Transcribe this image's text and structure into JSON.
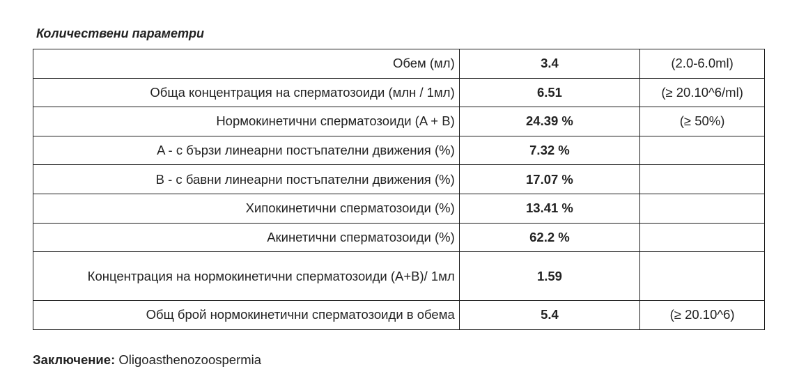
{
  "section_title": "Количествени параметри",
  "rows": [
    {
      "label": "Обем (мл)",
      "value": "3.4",
      "ref": "(2.0-6.0ml)"
    },
    {
      "label": "Обща концентрация на сперматозоиди (млн / 1мл)",
      "value": "6.51",
      "ref": "(≥ 20.10^6/ml)"
    },
    {
      "label": "Нормокинетични сперматозоиди (A + B)",
      "value": "24.39 %",
      "ref": "(≥ 50%)"
    },
    {
      "label": "A - с бързи линеарни постъпателни движения (%)",
      "value": "7.32 %",
      "ref": ""
    },
    {
      "label": "B - с бавни линеарни постъпателни движения (%)",
      "value": "17.07 %",
      "ref": ""
    },
    {
      "label": "Хипокинетични сперматозоиди (%)",
      "value": "13.41 %",
      "ref": ""
    },
    {
      "label": "Акинетични сперматозоиди (%)",
      "value": "62.2 %",
      "ref": ""
    },
    {
      "label": "Концентрация на нормокинетични сперматозоиди (A+B)/ 1мл",
      "value": "1.59",
      "ref": ""
    },
    {
      "label": "Общ брой нормокинетични сперматозоиди в обема",
      "value": "5.4",
      "ref": "(≥ 20.10^6)"
    }
  ],
  "conclusion": {
    "label": "Заключение:",
    "text": "Oligoasthenozoospermia"
  }
}
